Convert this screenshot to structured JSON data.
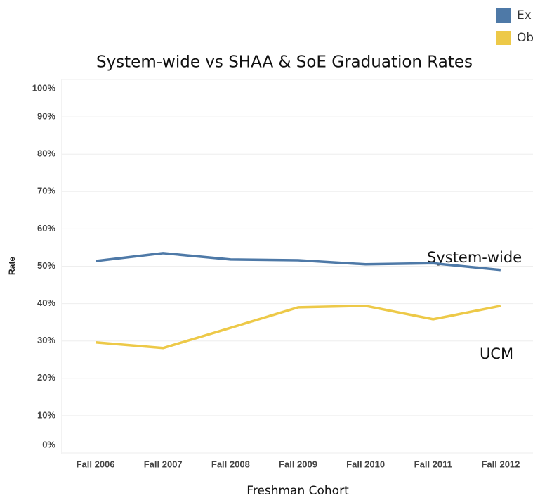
{
  "chart_data": {
    "type": "line",
    "title": "System-wide vs SHAA & SoE Graduation Rates",
    "x_label": "Freshman Cohort",
    "y_label": "Rate",
    "categories": [
      "Fall 2006",
      "Fall 2007",
      "Fall 2008",
      "Fall 2009",
      "Fall 2010",
      "Fall 2011",
      "Fall 2012"
    ],
    "series": [
      {
        "name": "Ex",
        "color": "#4e79a7",
        "values": [
          51.4,
          53.5,
          51.8,
          51.6,
          50.5,
          50.8,
          49.0
        ]
      },
      {
        "name": "Ob",
        "color": "#edc948",
        "values": [
          29.6,
          28.1,
          33.5,
          39.0,
          39.4,
          35.8,
          39.4
        ]
      }
    ],
    "annotations": [
      "System-wide",
      "UCM"
    ],
    "ylim": [
      0,
      100
    ],
    "yticks": [
      {
        "value": 0,
        "label": "0%"
      },
      {
        "value": 10,
        "label": "10%"
      },
      {
        "value": 20,
        "label": "20%"
      },
      {
        "value": 30,
        "label": "30%"
      },
      {
        "value": 40,
        "label": "40%"
      },
      {
        "value": 50,
        "label": "50%"
      },
      {
        "value": 60,
        "label": "60%"
      },
      {
        "value": 70,
        "label": "70%"
      },
      {
        "value": 80,
        "label": "80%"
      },
      {
        "value": 90,
        "label": "90%"
      },
      {
        "value": 100,
        "label": "100%"
      }
    ],
    "grid": true
  }
}
